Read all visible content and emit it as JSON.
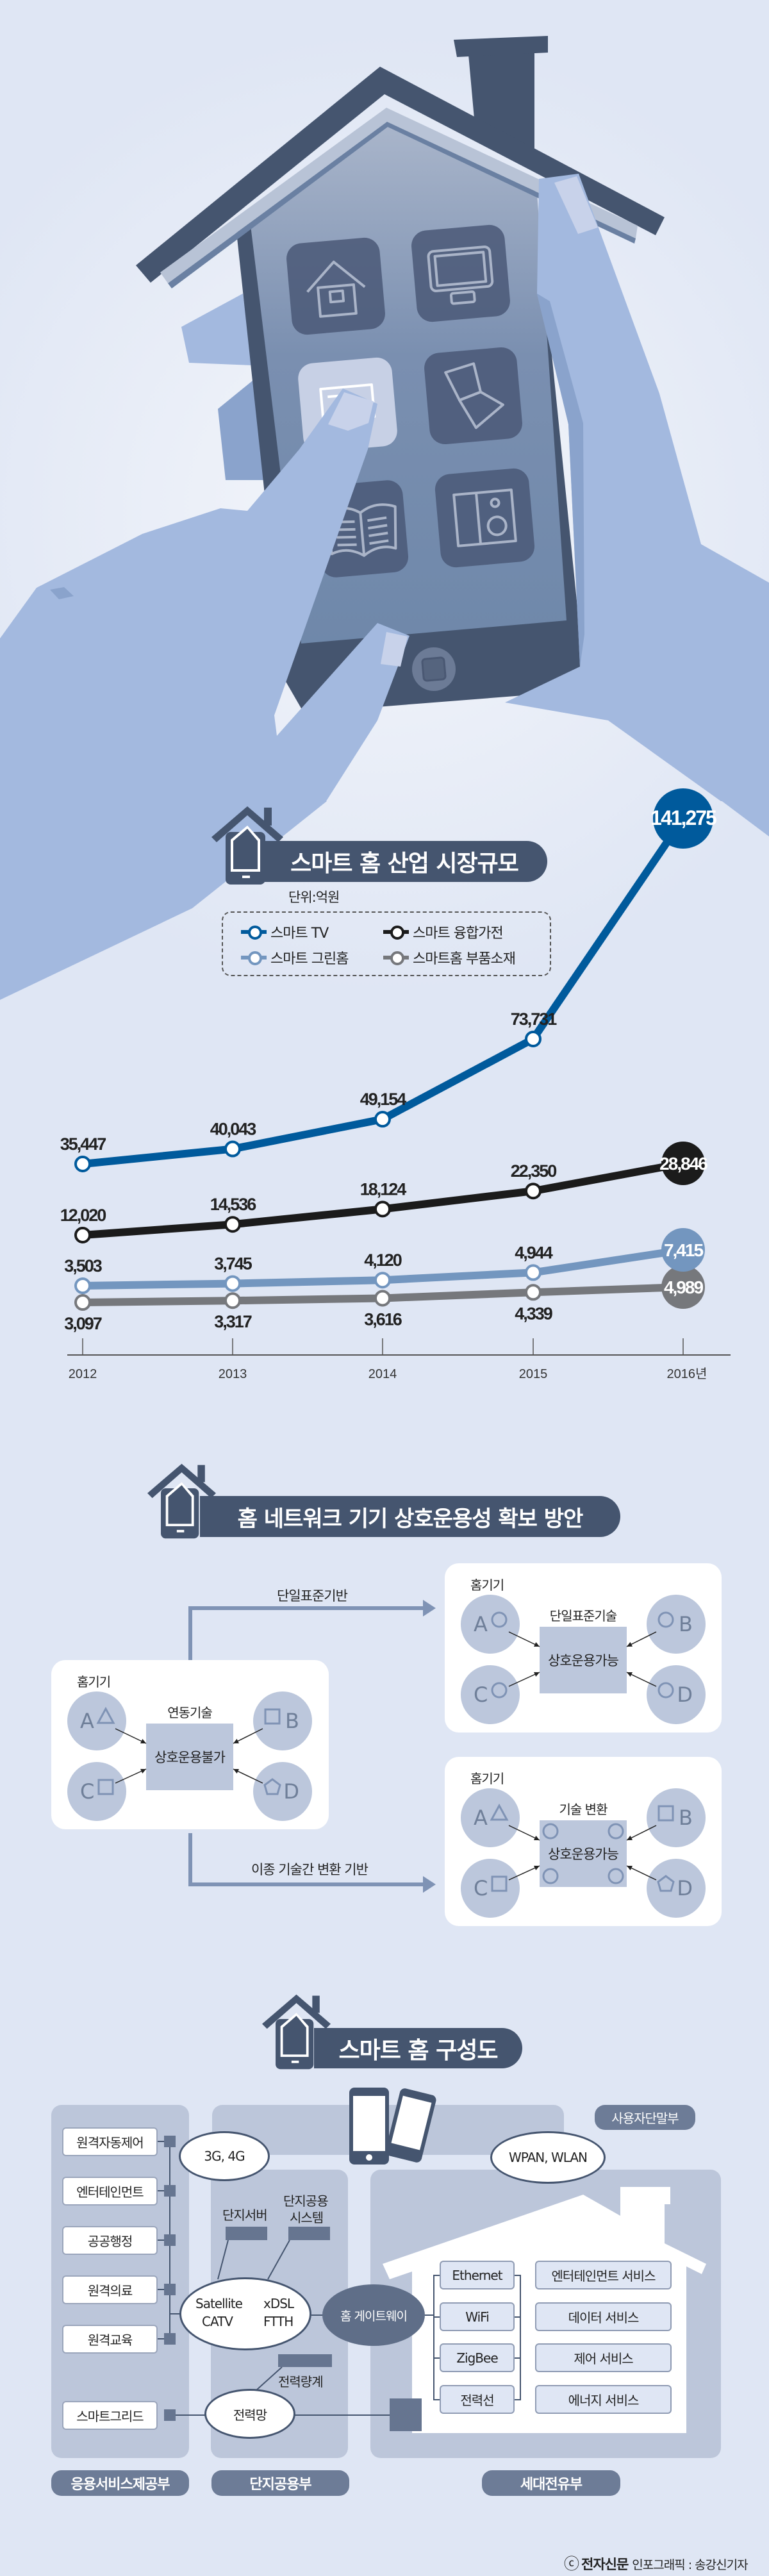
{
  "colors": {
    "background": "#dfe6f4",
    "title_bar": "#45556f",
    "smart_tv": "#005a9c",
    "convergence_appliance": "#1b1b1b",
    "green_home": "#7396bf",
    "components": "#76787c"
  },
  "illustration": {
    "app_icons": [
      "house-icon",
      "monitor-icon",
      "document-icon",
      "laptop-icon",
      "book-icon",
      "speaker-icon"
    ]
  },
  "section1": {
    "title": "스마트 홈 산업 시장규모",
    "unit": "단위:억원"
  },
  "chart_data": {
    "type": "line",
    "title": "스마트 홈 산업 시장규모",
    "unit": "단위:억원",
    "categories": [
      "2012",
      "2013",
      "2014",
      "2015",
      "2016년"
    ],
    "legend_position": "top-left",
    "grid": false,
    "series": [
      {
        "name": "스마트 TV",
        "color": "#005a9c",
        "values": [
          35447,
          40043,
          49154,
          73731,
          141275
        ]
      },
      {
        "name": "스마트 융합가전",
        "color": "#1b1b1b",
        "values": [
          12020,
          14536,
          18124,
          22350,
          28846
        ]
      },
      {
        "name": "스마트 그린홈",
        "color": "#7396bf",
        "values": [
          3503,
          3745,
          4120,
          4944,
          7415
        ]
      },
      {
        "name": "스마트홈 부품소재",
        "color": "#76787c",
        "values": [
          3097,
          3317,
          3616,
          4339,
          4989
        ]
      }
    ]
  },
  "section2": {
    "title": "홈 네트워크 기기 상호운용성 확보 방안",
    "arrow_top_label": "단일표준기반",
    "arrow_bottom_label": "이종 기술간 변환 기반",
    "left": {
      "group_label": "홈기기",
      "tech_label": "연동기술",
      "center": "상호운용불가",
      "devices": [
        "A",
        "B",
        "C",
        "D"
      ]
    },
    "top_right": {
      "group_label": "홈기기",
      "tech_label": "단일표준기술",
      "center": "상호운용가능",
      "devices": [
        "A",
        "B",
        "C",
        "D"
      ]
    },
    "bottom_right": {
      "group_label": "홈기기",
      "tech_label": "기술 변환",
      "center": "상호운용가능",
      "devices": [
        "A",
        "B",
        "C",
        "D"
      ]
    }
  },
  "section3": {
    "title": "스마트 홈 구성도",
    "user_terminal_label": "사용자단말부",
    "services": [
      "원격자동제어",
      "엔터테인먼트",
      "공공행정",
      "원격의료",
      "원격교육",
      "스마트그리드"
    ],
    "network_3g": "3G, 4G",
    "complex_server": "단지서버",
    "complex_system_line1": "단지공용",
    "complex_system_line2": "시스템",
    "satellite": "Satellite",
    "catv": "CATV",
    "xdsl": "xDSL",
    "ftth": "FTTH",
    "gateway": "홈 게이트웨이",
    "power_meter": "전력량계",
    "power_grid": "전력망",
    "wpan": "WPAN, WLAN",
    "protocols": [
      "Ethernet",
      "WiFi",
      "ZigBee",
      "전력선"
    ],
    "home_services": [
      "엔터테인먼트 서비스",
      "데이터 서비스",
      "제어 서비스",
      "에너지 서비스"
    ],
    "zones": [
      "응용서비스제공부",
      "단지공용부",
      "세대전유부"
    ]
  },
  "credit": {
    "copyright": "ⓒ",
    "publisher": "전자신문",
    "byline": "인포그래픽 : 송강신기자"
  }
}
